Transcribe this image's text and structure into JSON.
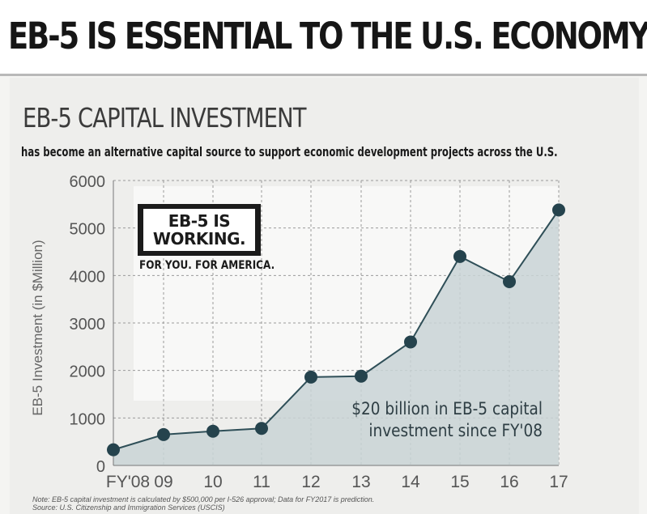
{
  "header": {
    "title": "EB-5 IS ESSENTIAL TO THE U.S. ECONOMY"
  },
  "panel": {
    "subtitle": "EB-5 CAPITAL INVESTMENT",
    "tagline": "has become an alternative capital source to support economic development projects across the U.S."
  },
  "logo": {
    "line1": "EB-5 IS",
    "line2": "WORKING.",
    "line3": "FOR YOU. FOR AMERICA."
  },
  "callout": {
    "line1": "$20 billion in EB-5 capital",
    "line2": "investment since FY'08"
  },
  "note": {
    "line1": "Note: EB-5 capital investment is calculated by $500,000 per I-526 approval; Data for FY2017 is prediction.",
    "line2": "Source: U.S. Citizenship and Immigration Services (USCIS)"
  },
  "colors": {
    "area_fill": "#c9d3d6",
    "line": "#2f4f58",
    "marker": "#25434d",
    "grid": "#9a9a9a",
    "axis_text": "#555555"
  },
  "chart_data": {
    "type": "area",
    "title": "",
    "xlabel": "",
    "ylabel": "EB-5 Investment (in $Million)",
    "categories": [
      "FY'08",
      "09",
      "10",
      "11",
      "12",
      "13",
      "14",
      "15",
      "16",
      "17"
    ],
    "series": [
      {
        "values": [
          330,
          650,
          720,
          780,
          1860,
          1880,
          2600,
          4400,
          3870,
          5380
        ]
      }
    ],
    "ylim": [
      0,
      6000
    ],
    "yticks": [
      "0",
      "1000",
      "2000",
      "3000",
      "4000",
      "5000",
      "6000"
    ],
    "grid": true,
    "legend": "none"
  }
}
